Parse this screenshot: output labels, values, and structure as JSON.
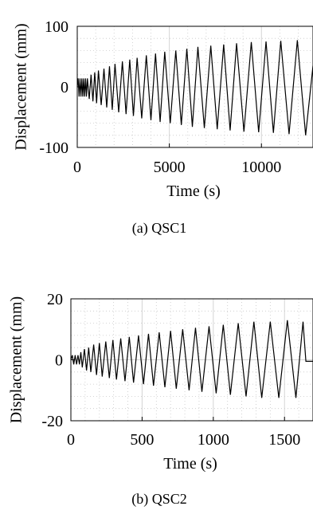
{
  "chart_data": [
    {
      "type": "line",
      "caption": "(a) QSC1",
      "xlabel": "Time (s)",
      "ylabel": "Displacement (mm)",
      "xlim": [
        0,
        12800
      ],
      "ylim": [
        -100,
        100
      ],
      "xticks": [
        0,
        5000,
        10000
      ],
      "xtick_labels": [
        "0",
        "5000",
        "10000"
      ],
      "yticks": [
        -100,
        0,
        100
      ],
      "ytick_labels": [
        "-100",
        "0",
        "100"
      ],
      "grid": "dotted",
      "series": [
        {
          "x": [
            0,
            50,
            100,
            150,
            200,
            250,
            300,
            350,
            400,
            450,
            500,
            550,
            650,
            750,
            850,
            950,
            1050,
            1150,
            1300,
            1450,
            1600,
            1750,
            1900,
            2050,
            2250,
            2450,
            2650,
            2850,
            3050,
            3250,
            3500,
            3750,
            4000,
            4250,
            4500,
            4750,
            5050,
            5350,
            5650,
            5950,
            6250,
            6550,
            6900,
            7250,
            7600,
            7950,
            8300,
            8650,
            9050,
            9450,
            9850,
            10250,
            10650,
            11050,
            11500,
            11950,
            12400,
            12800
          ],
          "y": [
            0,
            14,
            -16,
            14,
            -16,
            14,
            -16,
            14,
            -16,
            14,
            -16,
            14,
            -20,
            20,
            -24,
            24,
            -27,
            27,
            -30,
            30,
            -34,
            34,
            -38,
            38,
            -42,
            42,
            -45,
            45,
            -48,
            48,
            -52,
            52,
            -55,
            55,
            -58,
            58,
            -60,
            60,
            -63,
            63,
            -66,
            66,
            -68,
            68,
            -70,
            70,
            -72,
            72,
            -74,
            74,
            -75,
            75,
            -76,
            76,
            -78,
            77,
            -80,
            35
          ]
        }
      ]
    },
    {
      "type": "line",
      "caption": "(b) QSC2",
      "xlabel": "Time (s)",
      "ylabel": "Displacement (mm)",
      "xlim": [
        0,
        1700
      ],
      "ylim": [
        -20,
        20
      ],
      "xticks": [
        0,
        500,
        1000,
        1500
      ],
      "xtick_labels": [
        "0",
        "500",
        "1000",
        "1500"
      ],
      "yticks": [
        -20,
        0,
        20
      ],
      "ytick_labels": [
        "-20",
        "0",
        "20"
      ],
      "grid": "dotted",
      "series": [
        {
          "x": [
            0,
            10,
            20,
            30,
            40,
            50,
            60,
            70,
            80,
            95,
            110,
            125,
            140,
            160,
            180,
            200,
            220,
            245,
            270,
            295,
            320,
            350,
            380,
            410,
            440,
            475,
            510,
            545,
            580,
            620,
            660,
            700,
            740,
            785,
            830,
            875,
            920,
            970,
            1020,
            1070,
            1120,
            1175,
            1230,
            1285,
            1340,
            1400,
            1460,
            1520,
            1580,
            1630,
            1650,
            1700
          ],
          "y": [
            0,
            1.5,
            -1.5,
            1.5,
            -1.5,
            1.5,
            -1.5,
            2.5,
            -2.5,
            3.5,
            -3.5,
            4,
            -4,
            5,
            -5,
            5.5,
            -5.5,
            6,
            -6,
            6.5,
            -6.5,
            7,
            -7,
            7.5,
            -7.5,
            8,
            -8,
            8.5,
            -8.5,
            9,
            -9,
            9.5,
            -9.5,
            10,
            -10,
            10.5,
            -10.5,
            11,
            -11,
            11.5,
            -11.5,
            12,
            -12,
            12.5,
            -12.5,
            12.5,
            -12.5,
            13,
            -12.5,
            12.5,
            -0.5,
            -0.5
          ]
        }
      ]
    }
  ]
}
